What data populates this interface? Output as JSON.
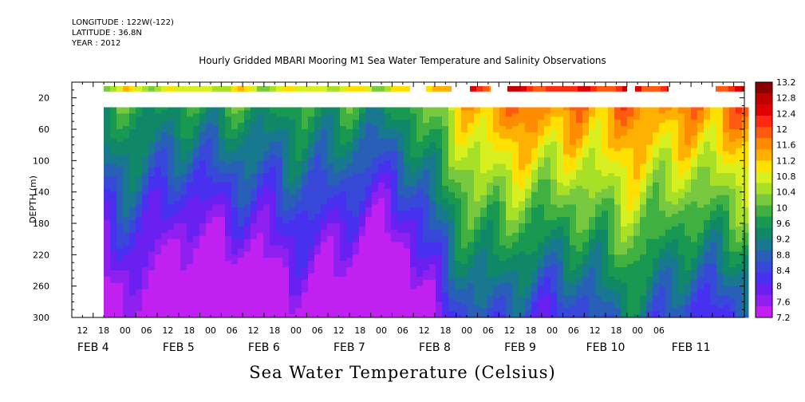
{
  "header": {
    "longitude": "LONGITUDE : 122W(-122)",
    "latitude": "LATITUDE : 36.8N",
    "year": "YEAR : 2012"
  },
  "chart_data": {
    "type": "heatmap",
    "title": "Hourly Gridded MBARI Mooring M1 Sea Water Temperature and Salinity Observations",
    "xlabel": "Sea Water Temperature (Celsius)",
    "ylabel": "DEPTH (m)",
    "y_axis": {
      "ticks": [
        20,
        60,
        100,
        140,
        180,
        220,
        260,
        300
      ],
      "ylim": [
        300,
        0
      ],
      "inverted": true
    },
    "x_axis": {
      "hour_labels": [
        "12",
        "18",
        "00",
        "06",
        "12",
        "18",
        "00",
        "06",
        "12",
        "18",
        "00",
        "06",
        "12",
        "18",
        "00",
        "06",
        "12",
        "18",
        "00",
        "06",
        "12",
        "18",
        "00",
        "06",
        "12",
        "18",
        "00",
        "06"
      ],
      "date_labels": [
        "FEB  4",
        "FEB  5",
        "FEB  6",
        "FEB  7",
        "FEB  8",
        "FEB  9",
        "FEB 10",
        "FEB 11"
      ]
    },
    "colorbar": {
      "levels": [
        "13.2",
        "12.8",
        "12.4",
        "12",
        "11.6",
        "11.2",
        "10.8",
        "10.4",
        "10",
        "9.6",
        "9.2",
        "8.8",
        "8.4",
        "8",
        "7.6",
        "7.2"
      ],
      "colors": [
        "#8b0000",
        "#c00000",
        "#e00000",
        "#ff2a10",
        "#ff5a10",
        "#ff8c00",
        "#ffb000",
        "#ffe000",
        "#d8f020",
        "#a8e028",
        "#78c840",
        "#40b040",
        "#189850",
        "#108868",
        "#187890",
        "#2860b8",
        "#3848d8",
        "#4830f0",
        "#6a20f0",
        "#9020f0",
        "#c020f0"
      ]
    },
    "data_description": {
      "surface_layer_depth_m": [
        5,
        12
      ],
      "gap_depth_m": [
        12,
        32
      ],
      "profile_top_depth_m": 32
    }
  }
}
